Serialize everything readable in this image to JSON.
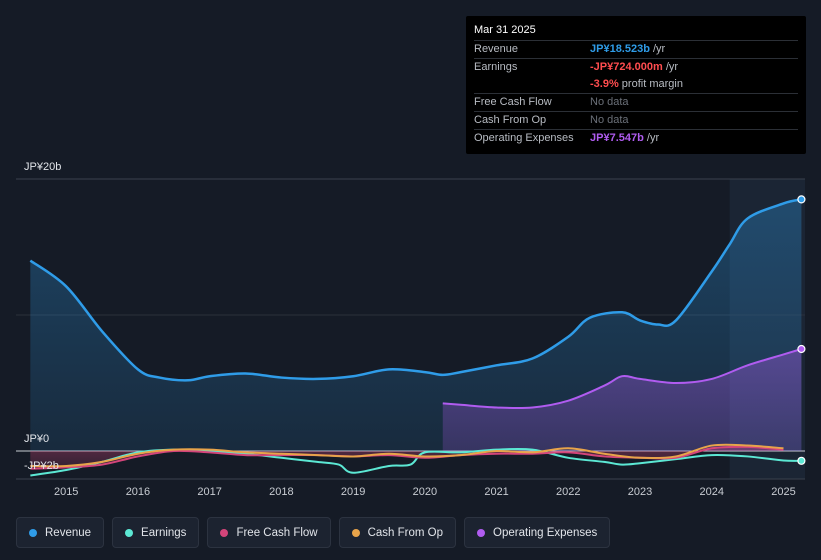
{
  "tooltip": {
    "date": "Mar 31 2025",
    "rows": [
      {
        "label": "Revenue",
        "value": "JP¥18.523b",
        "suffix": " /yr"
      },
      {
        "label": "Earnings",
        "value": "-JP¥724.000m",
        "suffix": " /yr"
      },
      {
        "label": "",
        "value": "-3.9%",
        "suffix": " profit margin"
      },
      {
        "label": "Free Cash Flow",
        "value": "No data",
        "suffix": ""
      },
      {
        "label": "Cash From Op",
        "value": "No data",
        "suffix": ""
      },
      {
        "label": "Operating Expenses",
        "value": "JP¥7.547b",
        "suffix": " /yr"
      }
    ]
  },
  "legend": [
    {
      "label": "Revenue",
      "color": "#2f9ce8"
    },
    {
      "label": "Earnings",
      "color": "#5ce8d4"
    },
    {
      "label": "Free Cash Flow",
      "color": "#d4457a"
    },
    {
      "label": "Cash From Op",
      "color": "#e8a44a"
    },
    {
      "label": "Operating Expenses",
      "color": "#b05cf0"
    }
  ],
  "chart_data": {
    "type": "area",
    "title": "",
    "xlabel": "",
    "ylabel": "",
    "y_unit": "JP¥ billions",
    "ylim": [
      -2,
      20
    ],
    "y_tick_labels": [
      "JP¥20b",
      "JP¥0",
      "-JP¥2b"
    ],
    "y_ticks": [
      20,
      0,
      -2
    ],
    "x_tick_labels": [
      "2015",
      "2016",
      "2017",
      "2018",
      "2019",
      "2020",
      "2021",
      "2022",
      "2023",
      "2024",
      "2025"
    ],
    "x_ticks": [
      2015,
      2016,
      2017,
      2018,
      2019,
      2020,
      2021,
      2022,
      2023,
      2024,
      2025
    ],
    "xlim": [
      2014.3,
      2025.3
    ],
    "highlight_start": 2024.25,
    "series": [
      {
        "name": "Revenue",
        "color": "#2f9ce8",
        "fill": true,
        "points": [
          [
            2014.5,
            14.0
          ],
          [
            2015.0,
            12.1
          ],
          [
            2015.5,
            8.8
          ],
          [
            2016.0,
            6.0
          ],
          [
            2016.3,
            5.4
          ],
          [
            2016.7,
            5.2
          ],
          [
            2017.0,
            5.5
          ],
          [
            2017.5,
            5.7
          ],
          [
            2018.0,
            5.4
          ],
          [
            2018.5,
            5.3
          ],
          [
            2019.0,
            5.5
          ],
          [
            2019.5,
            6.0
          ],
          [
            2020.0,
            5.8
          ],
          [
            2020.25,
            5.6
          ],
          [
            2020.5,
            5.8
          ],
          [
            2021.0,
            6.3
          ],
          [
            2021.5,
            6.8
          ],
          [
            2022.0,
            8.4
          ],
          [
            2022.3,
            9.8
          ],
          [
            2022.75,
            10.2
          ],
          [
            2023.0,
            9.6
          ],
          [
            2023.25,
            9.3
          ],
          [
            2023.5,
            9.6
          ],
          [
            2024.0,
            13.2
          ],
          [
            2024.25,
            15.2
          ],
          [
            2024.5,
            17.1
          ],
          [
            2025.0,
            18.2
          ],
          [
            2025.25,
            18.5
          ]
        ]
      },
      {
        "name": "Operating Expenses",
        "color": "#b05cf0",
        "fill": true,
        "points": [
          [
            2020.25,
            3.5
          ],
          [
            2020.5,
            3.4
          ],
          [
            2021.0,
            3.2
          ],
          [
            2021.5,
            3.2
          ],
          [
            2022.0,
            3.7
          ],
          [
            2022.5,
            4.8
          ],
          [
            2022.75,
            5.5
          ],
          [
            2023.0,
            5.3
          ],
          [
            2023.5,
            5.0
          ],
          [
            2024.0,
            5.3
          ],
          [
            2024.5,
            6.3
          ],
          [
            2025.0,
            7.1
          ],
          [
            2025.25,
            7.5
          ]
        ]
      },
      {
        "name": "Earnings",
        "color": "#5ce8d4",
        "fill": false,
        "points": [
          [
            2014.5,
            -1.8
          ],
          [
            2015.0,
            -1.4
          ],
          [
            2015.5,
            -0.8
          ],
          [
            2016.0,
            -0.1
          ],
          [
            2016.5,
            0.1
          ],
          [
            2017.0,
            0.0
          ],
          [
            2017.5,
            -0.2
          ],
          [
            2018.0,
            -0.5
          ],
          [
            2018.5,
            -0.8
          ],
          [
            2018.8,
            -1.0
          ],
          [
            2019.0,
            -1.6
          ],
          [
            2019.5,
            -1.1
          ],
          [
            2019.8,
            -1.0
          ],
          [
            2020.0,
            -0.1
          ],
          [
            2020.5,
            -0.1
          ],
          [
            2021.0,
            0.1
          ],
          [
            2021.5,
            0.1
          ],
          [
            2022.0,
            -0.5
          ],
          [
            2022.5,
            -0.8
          ],
          [
            2022.75,
            -1.0
          ],
          [
            2023.0,
            -0.9
          ],
          [
            2023.5,
            -0.6
          ],
          [
            2024.0,
            -0.3
          ],
          [
            2024.5,
            -0.4
          ],
          [
            2025.0,
            -0.7
          ],
          [
            2025.25,
            -0.72
          ]
        ]
      },
      {
        "name": "Free Cash Flow",
        "color": "#d4457a",
        "fill": true,
        "points": [
          [
            2014.5,
            -1.3
          ],
          [
            2015.0,
            -1.2
          ],
          [
            2015.5,
            -1.0
          ],
          [
            2016.0,
            -0.4
          ],
          [
            2016.5,
            0.0
          ],
          [
            2017.0,
            -0.1
          ],
          [
            2017.5,
            -0.3
          ],
          [
            2018.0,
            -0.3
          ],
          [
            2018.5,
            -0.3
          ],
          [
            2019.0,
            -0.4
          ],
          [
            2019.5,
            -0.3
          ],
          [
            2020.0,
            -0.5
          ],
          [
            2020.5,
            -0.3
          ],
          [
            2021.0,
            -0.2
          ],
          [
            2021.5,
            -0.2
          ],
          [
            2022.0,
            -0.1
          ],
          [
            2022.5,
            -0.4
          ],
          [
            2023.0,
            -0.5
          ],
          [
            2023.5,
            -0.5
          ],
          [
            2024.0,
            0.2
          ],
          [
            2024.5,
            0.3
          ],
          [
            2025.0,
            0.1
          ]
        ]
      },
      {
        "name": "Cash From Op",
        "color": "#e8a44a",
        "fill": false,
        "points": [
          [
            2014.5,
            -1.1
          ],
          [
            2015.0,
            -1.1
          ],
          [
            2015.5,
            -0.8
          ],
          [
            2016.0,
            -0.2
          ],
          [
            2016.5,
            0.1
          ],
          [
            2017.0,
            0.1
          ],
          [
            2017.5,
            -0.1
          ],
          [
            2018.0,
            -0.2
          ],
          [
            2018.5,
            -0.3
          ],
          [
            2019.0,
            -0.4
          ],
          [
            2019.5,
            -0.2
          ],
          [
            2020.0,
            -0.4
          ],
          [
            2020.5,
            -0.3
          ],
          [
            2021.0,
            0.0
          ],
          [
            2021.5,
            -0.1
          ],
          [
            2022.0,
            0.2
          ],
          [
            2022.5,
            -0.2
          ],
          [
            2023.0,
            -0.5
          ],
          [
            2023.5,
            -0.4
          ],
          [
            2024.0,
            0.4
          ],
          [
            2024.5,
            0.4
          ],
          [
            2025.0,
            0.2
          ]
        ]
      }
    ]
  }
}
